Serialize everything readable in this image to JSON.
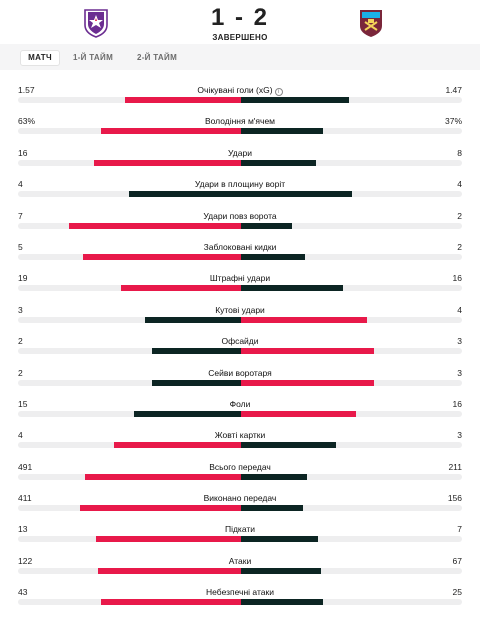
{
  "match": {
    "score": "1 - 2",
    "status": "ЗАВЕРШЕНО",
    "home_logo_icon": "fiorentina-crest-icon",
    "away_logo_icon": "west-ham-crest-icon"
  },
  "tabs": [
    {
      "label": "МАТЧ",
      "active": true
    },
    {
      "label": "1-Й ТАЙМ",
      "active": false
    },
    {
      "label": "2-Й ТАЙМ",
      "active": false
    }
  ],
  "colors": {
    "leader": "#e8194a",
    "trailer": "#0c2523",
    "track": "#eeeeef"
  },
  "stats": [
    {
      "label": "Очікувані голи (xG)",
      "home": "1.57",
      "away": "1.47",
      "home_share": 0.52,
      "away_share": 0.49,
      "home_color": "red",
      "away_color": "dark",
      "info": true
    },
    {
      "label": "Володіння м'ячем",
      "home": "63%",
      "away": "37%",
      "home_share": 0.63,
      "away_share": 0.37,
      "home_color": "red",
      "away_color": "dark"
    },
    {
      "label": "Удари",
      "home": "16",
      "away": "8",
      "home_share": 0.66,
      "away_share": 0.34,
      "home_color": "red",
      "away_color": "dark"
    },
    {
      "label": "Удари в площину воріт",
      "home": "4",
      "away": "4",
      "home_share": 0.5,
      "away_share": 0.5,
      "home_color": "dark",
      "away_color": "dark"
    },
    {
      "label": "Удари повз ворота",
      "home": "7",
      "away": "2",
      "home_share": 0.77,
      "away_share": 0.23,
      "home_color": "red",
      "away_color": "dark"
    },
    {
      "label": "Заблоковані кидки",
      "home": "5",
      "away": "2",
      "home_share": 0.71,
      "away_share": 0.29,
      "home_color": "red",
      "away_color": "dark"
    },
    {
      "label": "Штрафні удари",
      "home": "19",
      "away": "16",
      "home_share": 0.54,
      "away_share": 0.46,
      "home_color": "red",
      "away_color": "dark"
    },
    {
      "label": "Кутові удари",
      "home": "3",
      "away": "4",
      "home_share": 0.43,
      "away_share": 0.57,
      "home_color": "dark",
      "away_color": "red"
    },
    {
      "label": "Офсайди",
      "home": "2",
      "away": "3",
      "home_share": 0.4,
      "away_share": 0.6,
      "home_color": "dark",
      "away_color": "red"
    },
    {
      "label": "Сейви воротаря",
      "home": "2",
      "away": "3",
      "home_share": 0.4,
      "away_share": 0.6,
      "home_color": "dark",
      "away_color": "red"
    },
    {
      "label": "Фоли",
      "home": "15",
      "away": "16",
      "home_share": 0.48,
      "away_share": 0.52,
      "home_color": "dark",
      "away_color": "red"
    },
    {
      "label": "Жовті картки",
      "home": "4",
      "away": "3",
      "home_share": 0.57,
      "away_share": 0.43,
      "home_color": "red",
      "away_color": "dark"
    },
    {
      "label": "Всього передач",
      "home": "491",
      "away": "211",
      "home_share": 0.7,
      "away_share": 0.3,
      "home_color": "red",
      "away_color": "dark"
    },
    {
      "label": "Виконано передач",
      "home": "411",
      "away": "156",
      "home_share": 0.72,
      "away_share": 0.28,
      "home_color": "red",
      "away_color": "dark"
    },
    {
      "label": "Підкати",
      "home": "13",
      "away": "7",
      "home_share": 0.65,
      "away_share": 0.35,
      "home_color": "red",
      "away_color": "dark"
    },
    {
      "label": "Атаки",
      "home": "122",
      "away": "67",
      "home_share": 0.64,
      "away_share": 0.36,
      "home_color": "red",
      "away_color": "dark"
    },
    {
      "label": "Небезпечні атаки",
      "home": "43",
      "away": "25",
      "home_share": 0.63,
      "away_share": 0.37,
      "home_color": "red",
      "away_color": "dark"
    }
  ]
}
